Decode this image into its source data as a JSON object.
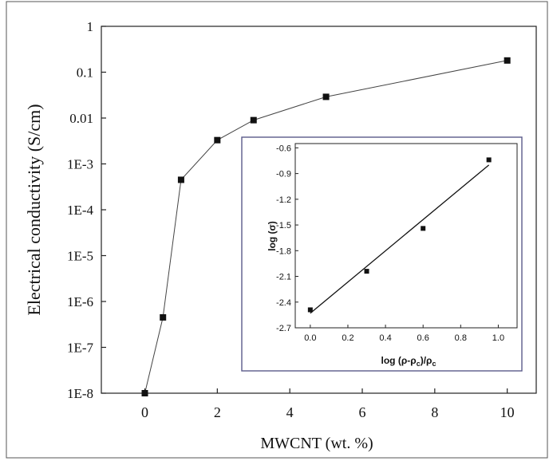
{
  "chart_data": [
    {
      "type": "line",
      "title": "",
      "xlabel": "MWCNT (wt. %)",
      "ylabel": "Electrical conductivity (S/cm)",
      "y_scale": "log",
      "xlim": [
        -1.2,
        10.8
      ],
      "ylim": [
        1e-08,
        1
      ],
      "x_ticks": [
        "0",
        "2",
        "4",
        "6",
        "8",
        "10"
      ],
      "y_ticks": [
        "1",
        "0.1",
        "0.01",
        "1E-3",
        "1E-4",
        "1E-5",
        "1E-6",
        "1E-7",
        "1E-8"
      ],
      "grid": false,
      "marker": "square",
      "series": [
        {
          "x": [
            0,
            0.5,
            1,
            2,
            3,
            5,
            10
          ],
          "y": [
            1e-08,
            4.5e-07,
            0.00045,
            0.0033,
            0.009,
            0.029,
            0.18
          ]
        }
      ]
    },
    {
      "type": "scatter",
      "title": "",
      "xlabel_parts": [
        "log (ρ-ρ",
        "c",
        ")/ρ",
        "c"
      ],
      "ylabel": "log (σ)",
      "xlim": [
        -0.08,
        1.1
      ],
      "ylim": [
        -2.7,
        -0.55
      ],
      "x_ticks": [
        "0.0",
        "0.2",
        "0.4",
        "0.6",
        "0.8",
        "1.0"
      ],
      "y_ticks": [
        "-0.6",
        "-0.9",
        "-1.2",
        "-1.5",
        "-1.8",
        "-2.1",
        "-2.4",
        "-2.7"
      ],
      "grid": false,
      "marker": "square",
      "series": [
        {
          "x": [
            0.0,
            0.3,
            0.6,
            0.95
          ],
          "y": [
            -2.49,
            -2.04,
            -1.54,
            -0.74
          ]
        }
      ],
      "fit_line": {
        "x": [
          0.0,
          0.95
        ],
        "y": [
          -2.53,
          -0.8
        ]
      }
    }
  ]
}
